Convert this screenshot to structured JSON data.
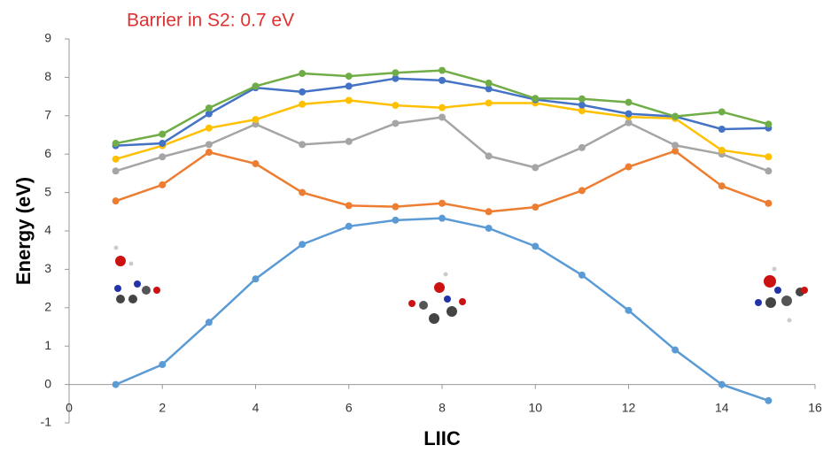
{
  "chart_data": {
    "type": "line",
    "title": "Barrier in S2: 0.7 eV",
    "xlabel": "LIIC",
    "ylabel": "Energy (eV)",
    "x": [
      1,
      2,
      3,
      4,
      5,
      6,
      7,
      8,
      9,
      10,
      11,
      12,
      13,
      14,
      15
    ],
    "series": [
      {
        "color": "#5b9bd5",
        "values": [
          0,
          0.52,
          1.62,
          2.75,
          3.65,
          4.12,
          4.28,
          4.33,
          4.07,
          3.6,
          2.85,
          1.93,
          0.9,
          0.0,
          -0.42
        ]
      },
      {
        "color": "#ed7d31",
        "values": [
          4.78,
          5.2,
          6.05,
          5.75,
          5.0,
          4.66,
          4.63,
          4.72,
          4.5,
          4.62,
          5.05,
          5.67,
          6.08,
          5.17,
          4.72
        ]
      },
      {
        "color": "#a5a5a5",
        "values": [
          5.56,
          5.93,
          6.25,
          6.78,
          6.25,
          6.33,
          6.8,
          6.96,
          5.95,
          5.65,
          6.17,
          6.82,
          6.23,
          6.0,
          5.56
        ]
      },
      {
        "color": "#ffc000",
        "values": [
          5.87,
          6.22,
          6.68,
          6.9,
          7.3,
          7.4,
          7.27,
          7.21,
          7.33,
          7.33,
          7.13,
          6.97,
          6.93,
          6.1,
          5.93
        ]
      },
      {
        "color": "#4472c4",
        "values": [
          6.22,
          6.28,
          7.05,
          7.73,
          7.62,
          7.77,
          7.97,
          7.92,
          7.7,
          7.42,
          7.28,
          7.05,
          6.98,
          6.65,
          6.68
        ]
      },
      {
        "color": "#70ad47",
        "values": [
          6.28,
          6.52,
          7.2,
          7.77,
          8.1,
          8.03,
          8.12,
          8.18,
          7.85,
          7.45,
          7.44,
          7.35,
          6.98,
          7.1,
          6.78
        ]
      }
    ],
    "xlim": [
      0,
      16
    ],
    "xticks": [
      0,
      2,
      4,
      6,
      8,
      10,
      12,
      14,
      16
    ],
    "ylim": [
      -1,
      9
    ],
    "yticks": [
      -1,
      0,
      1,
      2,
      3,
      4,
      5,
      6,
      7,
      8,
      9
    ],
    "title_color": "#e03030"
  }
}
